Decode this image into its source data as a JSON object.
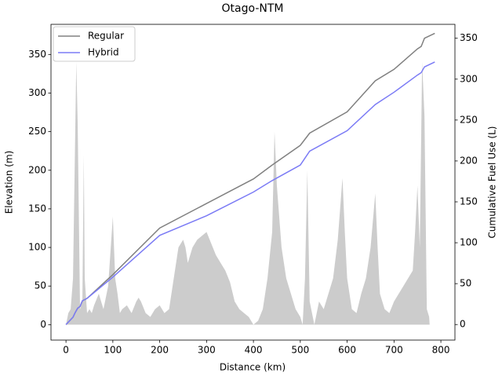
{
  "chart_data": {
    "type": "line",
    "title": "Otago-NTM",
    "xlabel": "Distance (km)",
    "ylabel": "Elevation (m)",
    "y2label": "Cumulative Fuel Use (L)",
    "xlim": [
      -32,
      830
    ],
    "ylim": [
      -20,
      389
    ],
    "y2lim": [
      -19,
      367
    ],
    "xticks": [
      0,
      100,
      200,
      300,
      400,
      500,
      600,
      700,
      800
    ],
    "yticks": [
      0,
      50,
      100,
      150,
      200,
      250,
      300,
      350
    ],
    "y2ticks": [
      0,
      50,
      100,
      150,
      200,
      250,
      300,
      350
    ],
    "legend": "upper left",
    "elevation": {
      "color": "#cccccc",
      "x": [
        0,
        5,
        10,
        15,
        20,
        22,
        25,
        30,
        35,
        38,
        40,
        45,
        50,
        55,
        60,
        70,
        80,
        90,
        100,
        105,
        110,
        115,
        120,
        130,
        140,
        150,
        155,
        160,
        170,
        180,
        190,
        200,
        210,
        220,
        230,
        240,
        250,
        255,
        260,
        270,
        280,
        290,
        300,
        310,
        320,
        330,
        340,
        350,
        360,
        370,
        380,
        390,
        400,
        410,
        420,
        430,
        440,
        445,
        450,
        460,
        470,
        480,
        490,
        500,
        505,
        510,
        515,
        520,
        530,
        540,
        550,
        560,
        570,
        580,
        590,
        595,
        600,
        610,
        620,
        630,
        640,
        650,
        660,
        665,
        670,
        680,
        690,
        700,
        710,
        720,
        730,
        740,
        745,
        750,
        755,
        760,
        765,
        770,
        775,
        776
      ],
      "values": [
        0,
        15,
        20,
        60,
        260,
        340,
        260,
        20,
        30,
        220,
        60,
        15,
        20,
        15,
        25,
        40,
        20,
        50,
        140,
        60,
        40,
        15,
        20,
        25,
        15,
        30,
        35,
        30,
        15,
        10,
        20,
        25,
        15,
        20,
        60,
        100,
        110,
        100,
        80,
        100,
        110,
        115,
        120,
        105,
        90,
        80,
        70,
        55,
        30,
        20,
        15,
        10,
        0,
        5,
        20,
        60,
        120,
        250,
        180,
        100,
        60,
        40,
        20,
        10,
        0,
        60,
        200,
        30,
        0,
        30,
        20,
        40,
        60,
        110,
        190,
        120,
        60,
        20,
        15,
        40,
        60,
        100,
        170,
        100,
        40,
        20,
        15,
        30,
        40,
        50,
        60,
        70,
        120,
        180,
        100,
        340,
        270,
        20,
        10,
        0
      ]
    },
    "series": [
      {
        "name": "Regular",
        "color": "#808080",
        "axis": "y2",
        "x": [
          0,
          5,
          15,
          20,
          25,
          30,
          35,
          45,
          100,
          200,
          300,
          350,
          400,
          440,
          500,
          520,
          600,
          660,
          700,
          750,
          758,
          765,
          787
        ],
        "values": [
          0,
          3,
          9,
          15,
          20,
          22,
          29,
          32,
          61,
          118,
          148,
          163,
          178,
          195,
          219,
          234,
          260,
          298,
          312,
          337,
          340,
          350,
          356
        ]
      },
      {
        "name": "Hybrid",
        "color": "#7b7bf5",
        "axis": "y2",
        "x": [
          0,
          5,
          15,
          20,
          25,
          30,
          35,
          45,
          100,
          200,
          300,
          400,
          440,
          500,
          520,
          600,
          660,
          700,
          750,
          758,
          765,
          787
        ],
        "values": [
          0,
          3,
          9,
          15,
          20,
          22,
          29,
          32,
          58,
          109,
          133,
          162,
          176,
          195,
          212,
          237,
          269,
          284,
          305,
          308,
          315,
          321
        ]
      }
    ]
  }
}
